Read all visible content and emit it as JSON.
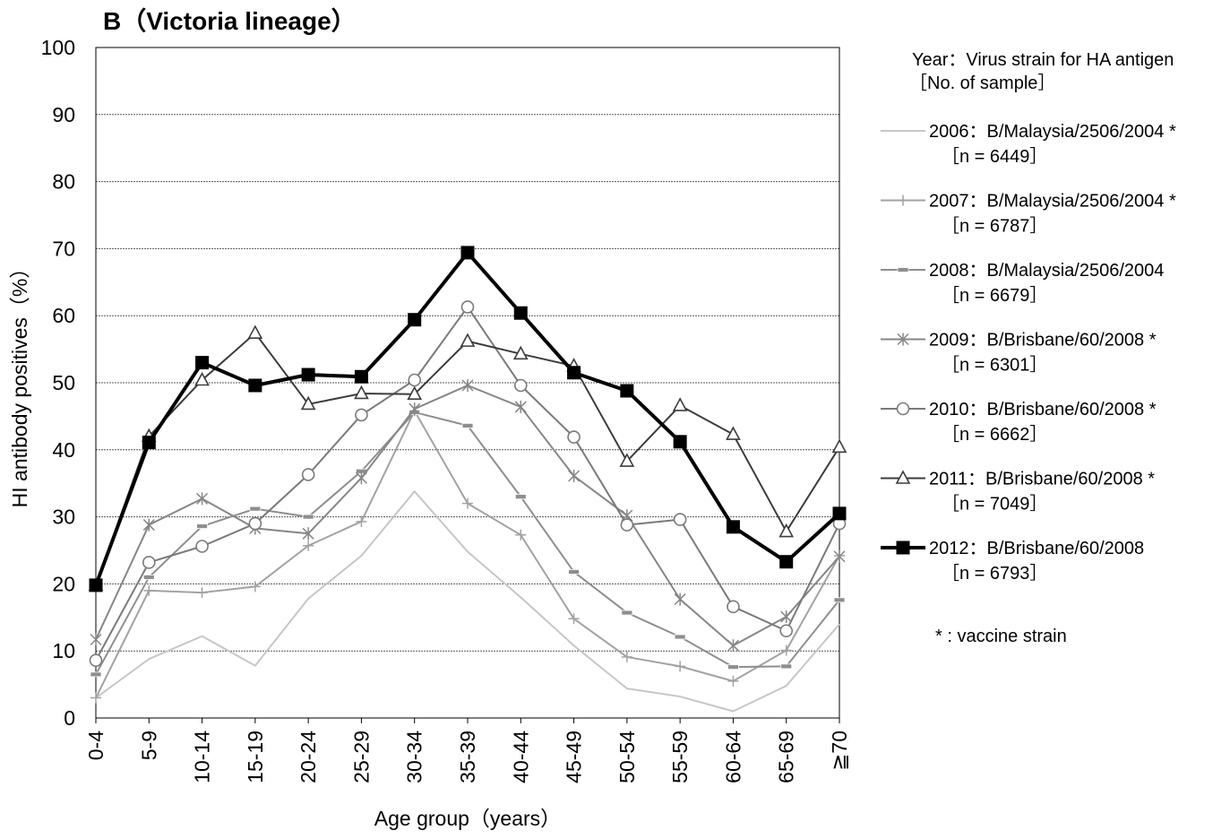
{
  "chart_data": {
    "type": "line",
    "title": "B（Victoria lineage）",
    "xlabel": "Age group（years）",
    "ylabel": "HI antibody positives（%）",
    "ylim": [
      0,
      100
    ],
    "yticks": [
      0,
      10,
      20,
      30,
      40,
      50,
      60,
      70,
      80,
      90,
      100
    ],
    "grid": true,
    "legend_position": "right",
    "categories": [
      "0-4",
      "5-9",
      "10-14",
      "15-19",
      "20-24",
      "25-29",
      "30-34",
      "35-39",
      "40-44",
      "45-49",
      "50-54",
      "55-59",
      "60-64",
      "65-69",
      "≧70"
    ],
    "legend_header": [
      "Year：Virus strain for HA antigen",
      "［No. of sample］"
    ],
    "footnote": "* : vaccine strain",
    "series": [
      {
        "name": "2006：B/Malaysia/2506/2004 *",
        "sample": "［n = 6449］",
        "color": "#c6c6c6",
        "marker": "none",
        "width": 2,
        "values": [
          3.0,
          8.8,
          12.2,
          7.8,
          17.8,
          24.2,
          33.8,
          24.8,
          18.0,
          10.8,
          4.4,
          3.2,
          1.0,
          4.8,
          14.0
        ]
      },
      {
        "name": "2007：B/Malaysia/2506/2004 *",
        "sample": "［n = 6787］",
        "color": "#a2a2a2",
        "marker": "plus",
        "width": 2,
        "values": [
          3.0,
          19.0,
          18.7,
          19.6,
          25.7,
          29.3,
          45.8,
          32.0,
          27.3,
          14.8,
          9.1,
          7.7,
          5.5,
          10.1,
          24.2
        ]
      },
      {
        "name": "2008：B/Malaysia/2506/2004",
        "sample": "［n = 6679］",
        "color": "#8e8e8e",
        "marker": "dash",
        "width": 2,
        "values": [
          6.5,
          21.0,
          28.6,
          31.2,
          30.0,
          36.8,
          45.6,
          43.6,
          33.0,
          21.8,
          15.7,
          12.1,
          7.6,
          7.7,
          17.6
        ]
      },
      {
        "name": "2009：B/Brisbane/60/2008 *",
        "sample": "［n = 6301］",
        "color": "#868686",
        "marker": "star",
        "width": 2,
        "values": [
          11.7,
          28.8,
          32.7,
          28.3,
          27.5,
          35.8,
          46.1,
          49.6,
          46.4,
          36.1,
          30.2,
          17.7,
          10.8,
          15.1,
          24.1
        ]
      },
      {
        "name": "2010：B/Brisbane/60/2008 *",
        "sample": "［n = 6662］",
        "color": "#7a7a7a",
        "marker": "circle",
        "width": 2,
        "values": [
          8.6,
          23.2,
          25.6,
          29.0,
          36.3,
          45.2,
          50.4,
          61.3,
          49.6,
          41.9,
          28.8,
          29.6,
          16.6,
          13.0,
          29.0
        ]
      },
      {
        "name": "2011：B/Brisbane/60/2008 *",
        "sample": "［n = 7049］",
        "color": "#3c3c3c",
        "marker": "triangle",
        "width": 2,
        "values": [
          19.8,
          42.0,
          50.4,
          57.4,
          46.8,
          48.4,
          48.3,
          56.2,
          54.3,
          52.5,
          38.3,
          46.6,
          42.3,
          27.8,
          40.4
        ]
      },
      {
        "name": "2012：B/Brisbane/60/2008",
        "sample": "［n = 6793］",
        "color": "#000000",
        "marker": "square",
        "width": 4,
        "values": [
          19.8,
          41.1,
          53.0,
          49.6,
          51.2,
          50.9,
          59.4,
          69.4,
          60.4,
          51.5,
          48.8,
          41.2,
          28.5,
          23.3,
          30.5
        ]
      }
    ]
  }
}
